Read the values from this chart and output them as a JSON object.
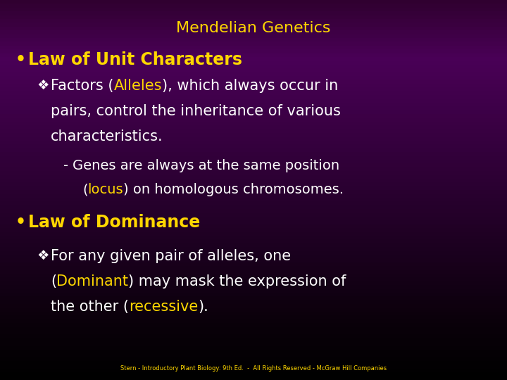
{
  "title": "Mendelian Genetics",
  "title_color": "#FFD700",
  "bg_top": "#0A0010",
  "bg_mid": "#4A0060",
  "bg_color": "#3A0050",
  "bullet1": "Law of Unit Characters",
  "bullet1_color": "#FFD700",
  "sub1_alleles_color": "#FFD700",
  "sub1_text_color": "#FFFFFF",
  "sub2_locus_color": "#FFD700",
  "sub2_text_color": "#FFFFFF",
  "bullet2": "Law of Dominance",
  "bullet2_color": "#FFD700",
  "sub3_dominant_color": "#FFD700",
  "sub3_recessive_color": "#FFD700",
  "sub3_text_color": "#FFFFFF",
  "footer": "Stern - Introductory Plant Biology: 9th Ed.  -  All Rights Reserved - McGraw Hill Companies",
  "footer_color": "#FFD700",
  "fig_width": 7.2,
  "fig_height": 5.4,
  "dpi": 100
}
